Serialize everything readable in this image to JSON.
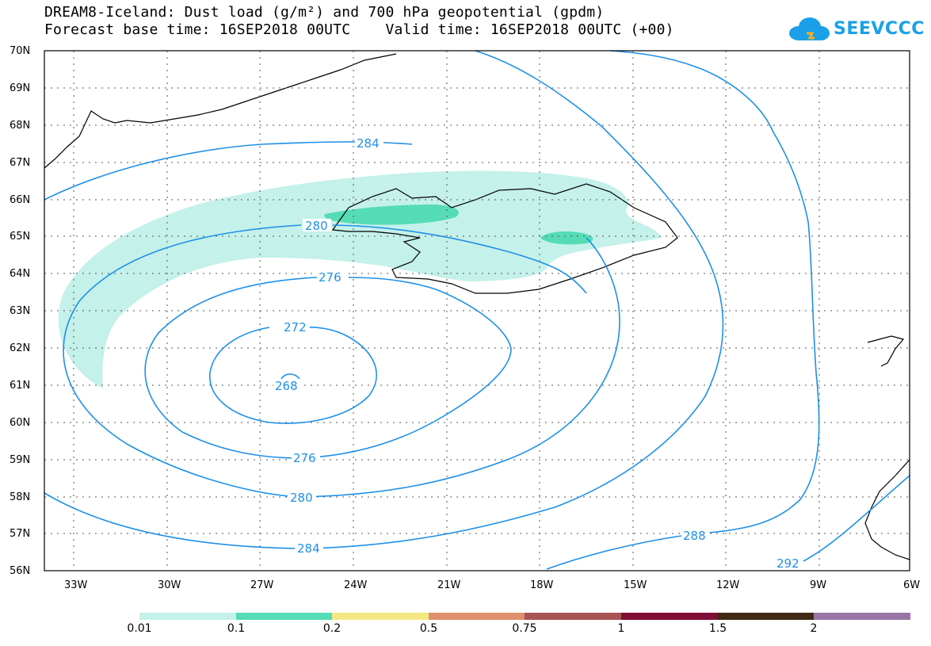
{
  "header": {
    "title_line1": "DREAM8-Iceland: Dust load (g/m²) and 700 hPa geopotential (gpdm)",
    "title_line2": "Forecast base time: 16SEP2018 00UTC    Valid time: 16SEP2018 00UTC (+00)"
  },
  "logo": {
    "text": "SEEVCCC"
  },
  "axes": {
    "lat_labels": [
      "70N",
      "69N",
      "68N",
      "67N",
      "66N",
      "65N",
      "64N",
      "63N",
      "62N",
      "61N",
      "60N",
      "59N",
      "58N",
      "57N",
      "56N"
    ],
    "lon_labels": [
      "33W",
      "30W",
      "27W",
      "24W",
      "21W",
      "18W",
      "15W",
      "12W",
      "9W",
      "6W"
    ]
  },
  "contours": {
    "labels": [
      "284",
      "280",
      "276",
      "272",
      "268",
      "276",
      "280",
      "284",
      "288",
      "292"
    ]
  },
  "colorbar": {
    "colors": [
      "#c4f1ea",
      "#55dcb4",
      "#f5e884",
      "#e0906a",
      "#a95454",
      "#7f0f37",
      "#3f2a14",
      "#9975a5"
    ],
    "labels": [
      "0.01",
      "0.1",
      "0.2",
      "0.5",
      "0.75",
      "1",
      "1.5",
      "2"
    ]
  }
}
